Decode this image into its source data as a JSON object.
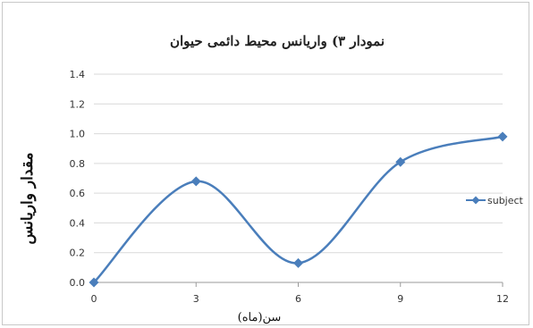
{
  "chart_data": {
    "type": "line",
    "title": "نمودار ۳) واریانس محیط دائمی حیوان",
    "xlabel": "سن(ماه)",
    "ylabel": "مقدار واریانس",
    "x": [
      0,
      3,
      6,
      9,
      12
    ],
    "y_ticks": [
      "0.0",
      "0.2",
      "0.4",
      "0.6",
      "0.8",
      "1.0",
      "1.2",
      "1.4"
    ],
    "x_ticks": [
      "0",
      "3",
      "6",
      "9",
      "12"
    ],
    "ylim": [
      0,
      1.4
    ],
    "xlim": [
      0,
      12
    ],
    "grid": true,
    "legend_position": "right",
    "smooth": true,
    "series": [
      {
        "name": "subject",
        "color": "#4a7ebb",
        "marker": "diamond",
        "values": [
          0.0,
          0.68,
          0.13,
          0.81,
          0.98
        ]
      }
    ]
  }
}
